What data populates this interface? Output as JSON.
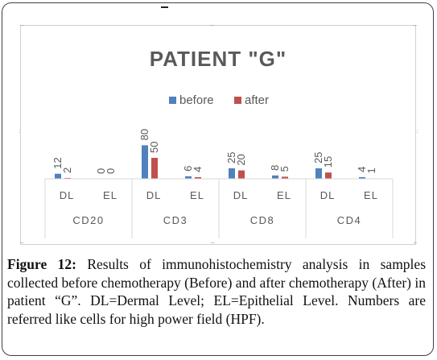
{
  "chart_data": {
    "type": "bar",
    "title": "PATIENT \"G\"",
    "groups": [
      "CD20",
      "CD3",
      "CD8",
      "CD4"
    ],
    "categories": [
      "DL",
      "EL",
      "DL",
      "EL",
      "DL",
      "EL",
      "DL",
      "EL"
    ],
    "series": [
      {
        "name": "before",
        "color": "#4f81bd",
        "values": [
          12,
          0,
          80,
          6,
          25,
          8,
          25,
          4
        ]
      },
      {
        "name": "after",
        "color": "#c0504d",
        "values": [
          2,
          0,
          50,
          4,
          20,
          5,
          15,
          1
        ]
      }
    ],
    "ylim": [
      0,
      100
    ],
    "legend": "top-center",
    "grid": false
  },
  "caption": {
    "label": "Figure 12:",
    "text": "Results of immunohistochemistry analysis in samples collected before chemotherapy (Before) and after chemotherapy (After) in patient “G”. DL=Dermal Level; EL=Epithelial Level. Numbers are referred like cells for high power field (HPF)."
  }
}
